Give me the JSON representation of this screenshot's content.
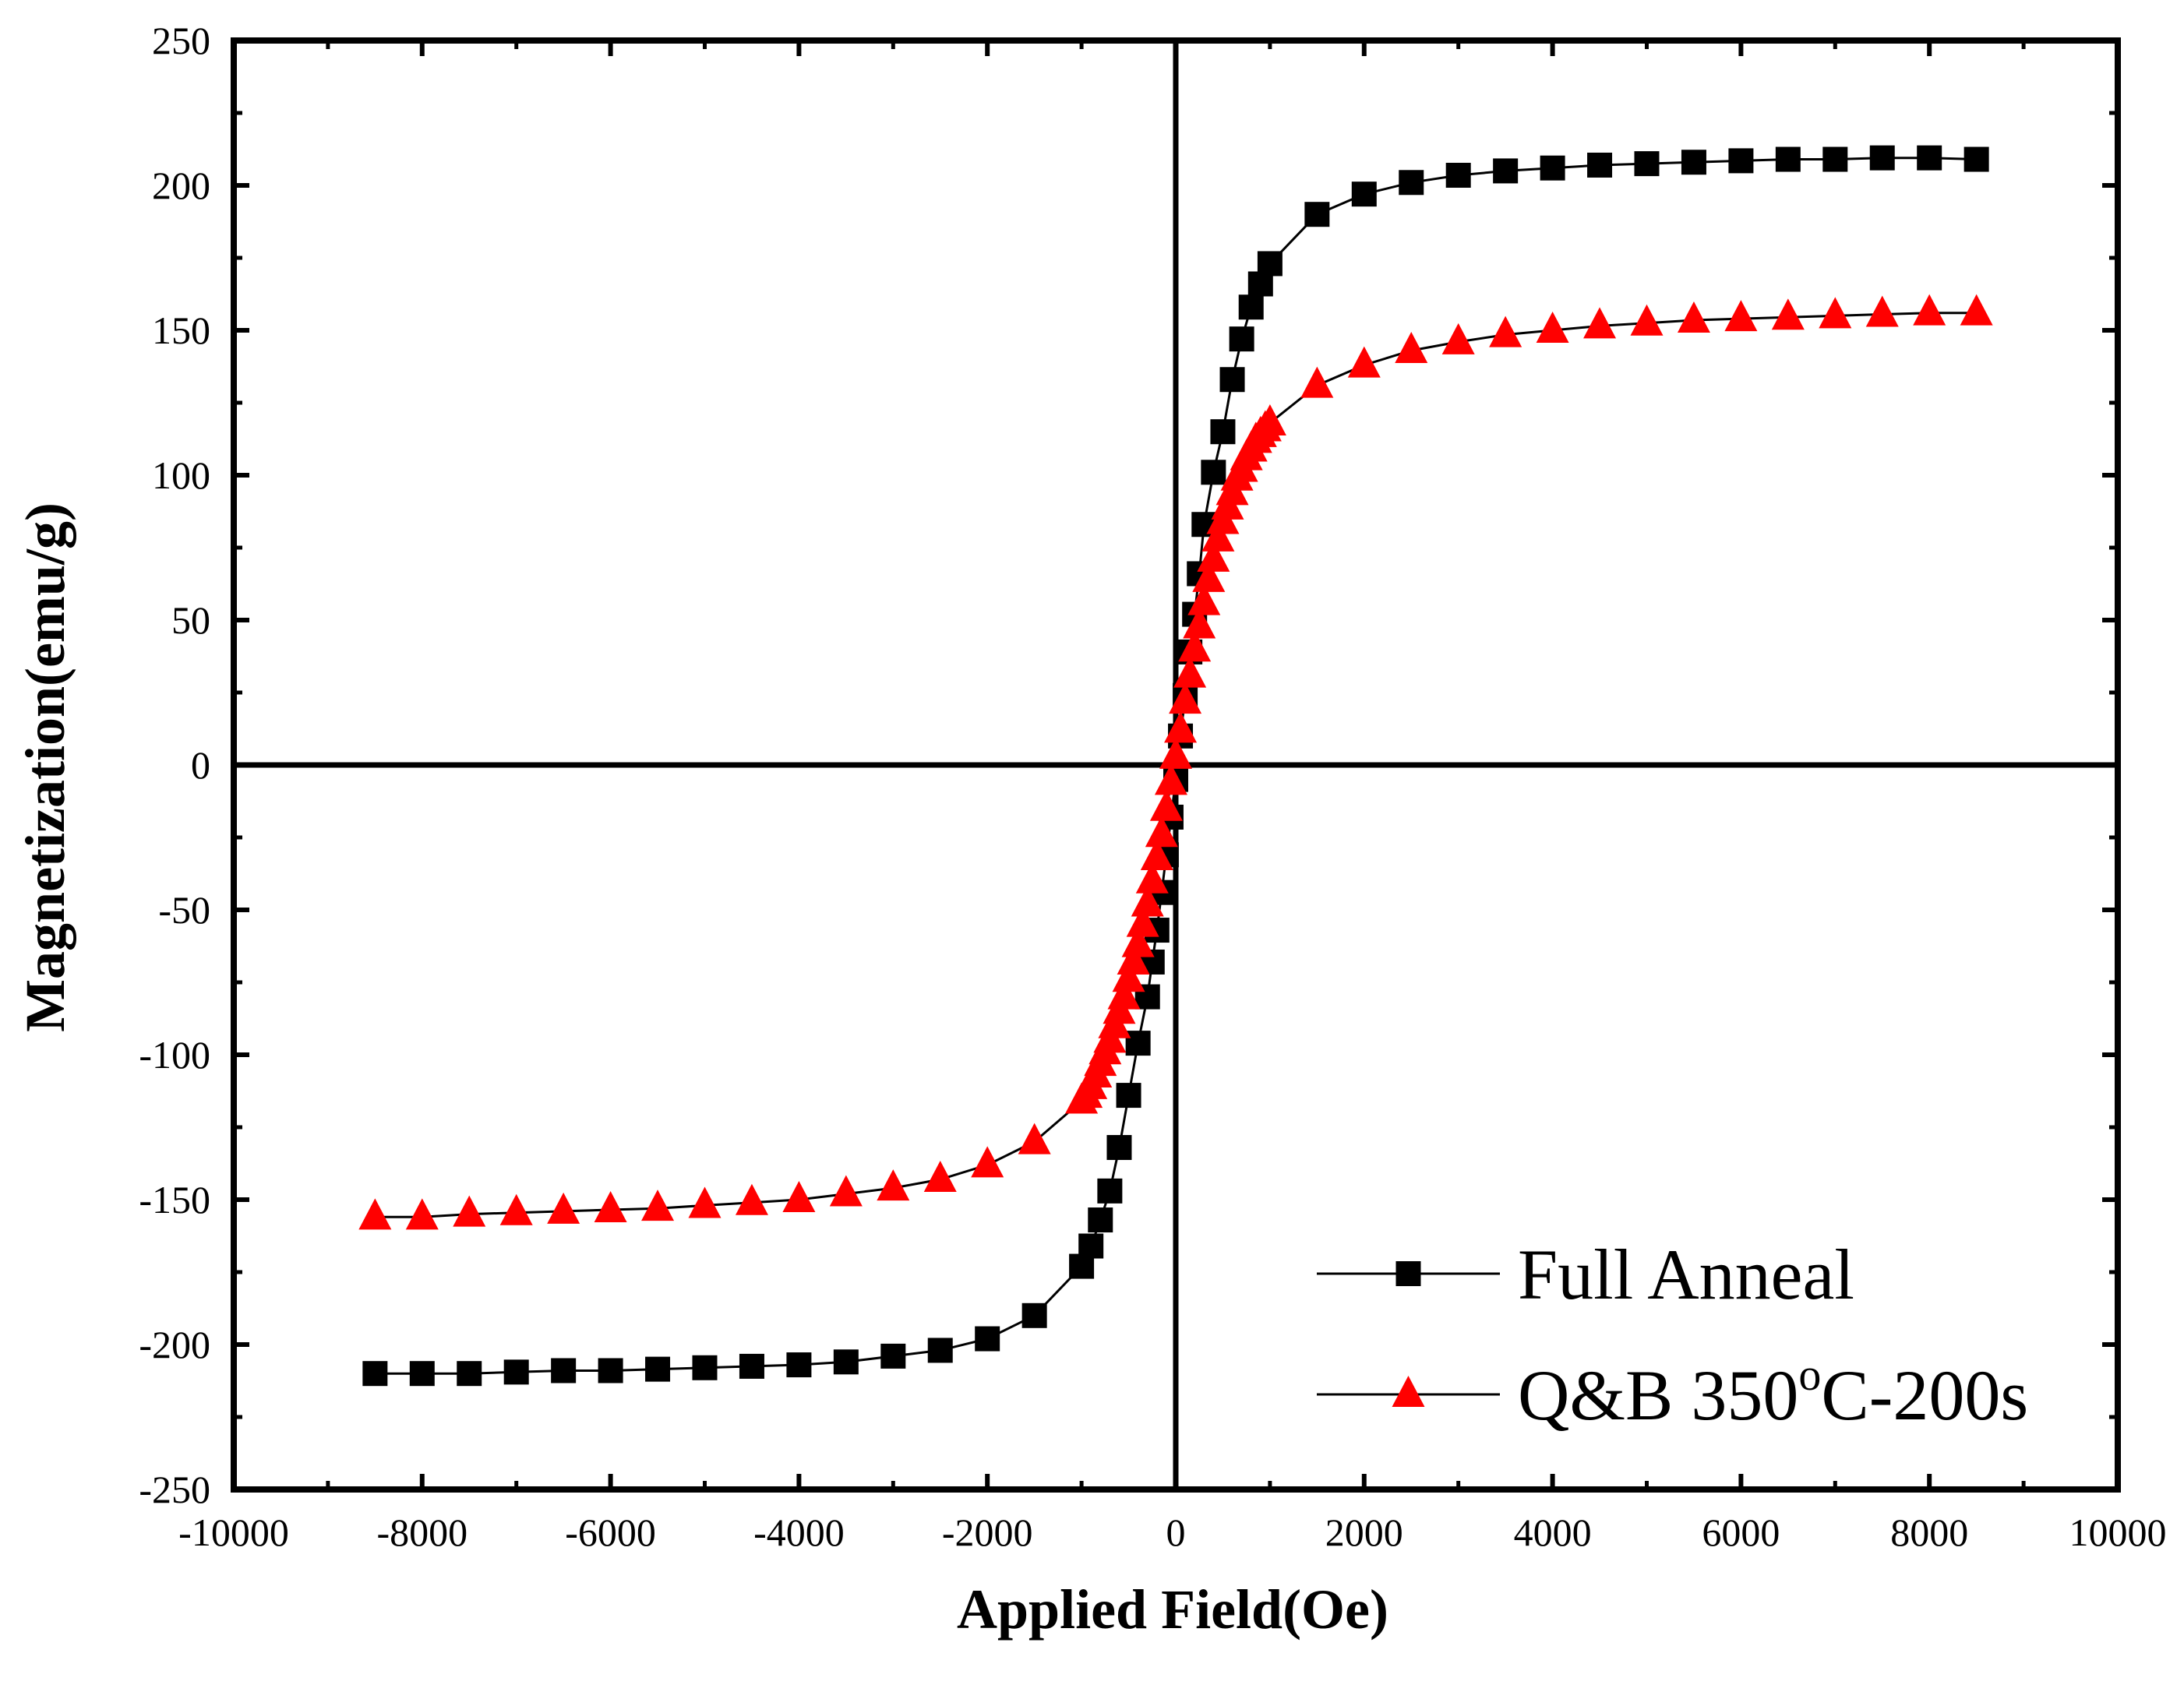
{
  "chart_data": {
    "type": "scatter",
    "title": "",
    "xlabel": "Applied Field(Oe)",
    "ylabel": "Magnetization(emu/g)",
    "xlim": [
      -10000,
      10000
    ],
    "ylim": [
      -250,
      250
    ],
    "xticks": [
      -10000,
      -8000,
      -6000,
      -4000,
      -2000,
      0,
      2000,
      4000,
      6000,
      8000,
      10000
    ],
    "yticks": [
      250,
      200,
      150,
      100,
      50,
      0,
      -50,
      -100,
      -150,
      -200,
      -250
    ],
    "xtick_labels": [
      "-10000",
      "-8000",
      "-6000",
      "-4000",
      "-2000",
      "0",
      "2000",
      "4000",
      "6000",
      "8000",
      "10000"
    ],
    "ytick_labels": [
      "250",
      "200",
      "150",
      "100",
      "50",
      "0",
      "-50",
      "-100",
      "-150",
      "-200",
      "-250"
    ],
    "grid": false,
    "legend_position": "bottom-right",
    "series": [
      {
        "name": "Full Anneal",
        "marker": "square",
        "color": "#000000",
        "x": [
          -8500,
          -8000,
          -7500,
          -7000,
          -6500,
          -6000,
          -5500,
          -5000,
          -4500,
          -4000,
          -3500,
          -3000,
          -2500,
          -2000,
          -1500,
          -1000,
          -900,
          -800,
          -700,
          -600,
          -500,
          -400,
          -300,
          -250,
          -200,
          -150,
          -100,
          -50,
          0,
          50,
          100,
          150,
          200,
          250,
          300,
          400,
          500,
          600,
          700,
          800,
          900,
          1000,
          1500,
          2000,
          2500,
          3000,
          3500,
          4000,
          4500,
          5000,
          5500,
          6000,
          6500,
          7000,
          7500,
          8000,
          8500
        ],
        "y": [
          -210,
          -210,
          -210,
          -209.5,
          -209,
          -209,
          -208.5,
          -208,
          -207.5,
          -207,
          -206,
          -204,
          -202,
          -198,
          -190,
          -173,
          -166,
          -157,
          -147,
          -132,
          -114,
          -96,
          -80,
          -68,
          -57,
          -44,
          -31,
          -18,
          -5,
          10,
          24,
          39,
          52,
          66,
          83,
          101,
          115,
          133,
          147,
          158,
          166,
          173,
          190,
          197,
          201,
          203.5,
          205,
          206,
          207,
          207.5,
          208,
          208.5,
          209,
          209,
          209.5,
          209.5,
          209
        ]
      },
      {
        "name": "Q&B 350oC-200s",
        "marker": "triangle",
        "color": "#ff0000",
        "x": [
          -8500,
          -8000,
          -7500,
          -7000,
          -6500,
          -6000,
          -5500,
          -5000,
          -4500,
          -4000,
          -3500,
          -3000,
          -2500,
          -2000,
          -1500,
          -1000,
          -950,
          -900,
          -850,
          -800,
          -750,
          -700,
          -650,
          -600,
          -550,
          -500,
          -450,
          -400,
          -350,
          -300,
          -250,
          -200,
          -150,
          -100,
          -50,
          0,
          50,
          100,
          150,
          200,
          250,
          300,
          350,
          400,
          450,
          500,
          550,
          600,
          650,
          700,
          750,
          800,
          850,
          900,
          950,
          1000,
          1500,
          2000,
          2500,
          3000,
          3500,
          4000,
          4500,
          5000,
          5500,
          6000,
          6500,
          7000,
          7500,
          8000,
          8500
        ],
        "y": [
          -156,
          -156,
          -155,
          -154.5,
          -154,
          -153.5,
          -153,
          -152,
          -151,
          -150,
          -148,
          -146,
          -143,
          -138,
          -130,
          -116,
          -114,
          -111,
          -107,
          -103,
          -99,
          -95,
          -90,
          -85,
          -80,
          -74,
          -68,
          -62,
          -55,
          -48,
          -40,
          -32,
          -24,
          -15,
          -6,
          3,
          12,
          22,
          31,
          40,
          48,
          56,
          64,
          71,
          78,
          84,
          89,
          94,
          99,
          102,
          106,
          109,
          112,
          114,
          116,
          118,
          131,
          138,
          143,
          146,
          148.5,
          150,
          151.5,
          152.5,
          153.5,
          154,
          154.5,
          155,
          155.5,
          156,
          156
        ]
      }
    ],
    "legend": [
      {
        "label": "Full Anneal",
        "marker": "square",
        "color": "#000000"
      },
      {
        "label": "Q&B 350",
        "superscript": "o",
        "label_suffix": "C-200s",
        "marker": "triangle",
        "color": "#ff0000"
      }
    ]
  }
}
